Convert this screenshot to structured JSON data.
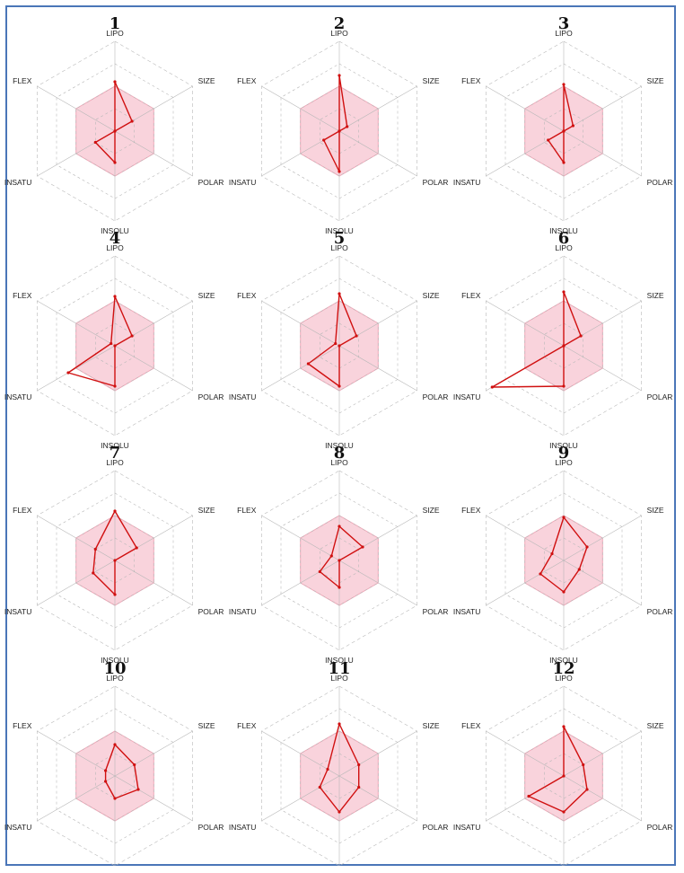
{
  "theme": {
    "frame_color": "#4a76b8",
    "optimal_fill": "#f9d3dc",
    "optimal_stroke": "#f0a9b9",
    "grid_color": "#b8b8b8",
    "line_color": "#d01010"
  },
  "chart_data": {
    "type": "radar",
    "axes": [
      "LIPO",
      "SIZE",
      "POLAR",
      "INSOLU",
      "INSATU",
      "FLEX"
    ],
    "rlim": [
      0,
      1
    ],
    "optimal_range": [
      0.5,
      0.5,
      0.5,
      0.5,
      0.5,
      0.5
    ],
    "grid_levels": 4,
    "grid": true,
    "panels": [
      {
        "label": "1",
        "values": [
          0.55,
          0.22,
          0.0,
          0.35,
          0.25,
          0.0
        ]
      },
      {
        "label": "2",
        "values": [
          0.62,
          0.1,
          0.0,
          0.45,
          0.2,
          0.0
        ]
      },
      {
        "label": "3",
        "values": [
          0.52,
          0.12,
          0.0,
          0.35,
          0.2,
          0.0
        ]
      },
      {
        "label": "4",
        "values": [
          0.55,
          0.22,
          0.0,
          0.45,
          0.6,
          0.05
        ]
      },
      {
        "label": "5",
        "values": [
          0.58,
          0.22,
          0.0,
          0.45,
          0.4,
          0.05
        ]
      },
      {
        "label": "6",
        "values": [
          0.6,
          0.22,
          0.0,
          0.45,
          0.92,
          0.0
        ]
      },
      {
        "label": "7",
        "values": [
          0.55,
          0.28,
          0.0,
          0.38,
          0.28,
          0.25
        ]
      },
      {
        "label": "8",
        "values": [
          0.38,
          0.3,
          0.0,
          0.3,
          0.25,
          0.1
        ]
      },
      {
        "label": "9",
        "values": [
          0.48,
          0.3,
          0.2,
          0.35,
          0.3,
          0.15
        ]
      },
      {
        "label": "10",
        "values": [
          0.35,
          0.25,
          0.3,
          0.25,
          0.12,
          0.12
        ]
      },
      {
        "label": "11",
        "values": [
          0.58,
          0.25,
          0.25,
          0.4,
          0.25,
          0.15
        ]
      },
      {
        "label": "12",
        "values": [
          0.55,
          0.25,
          0.3,
          0.4,
          0.45,
          0.0
        ]
      }
    ]
  }
}
